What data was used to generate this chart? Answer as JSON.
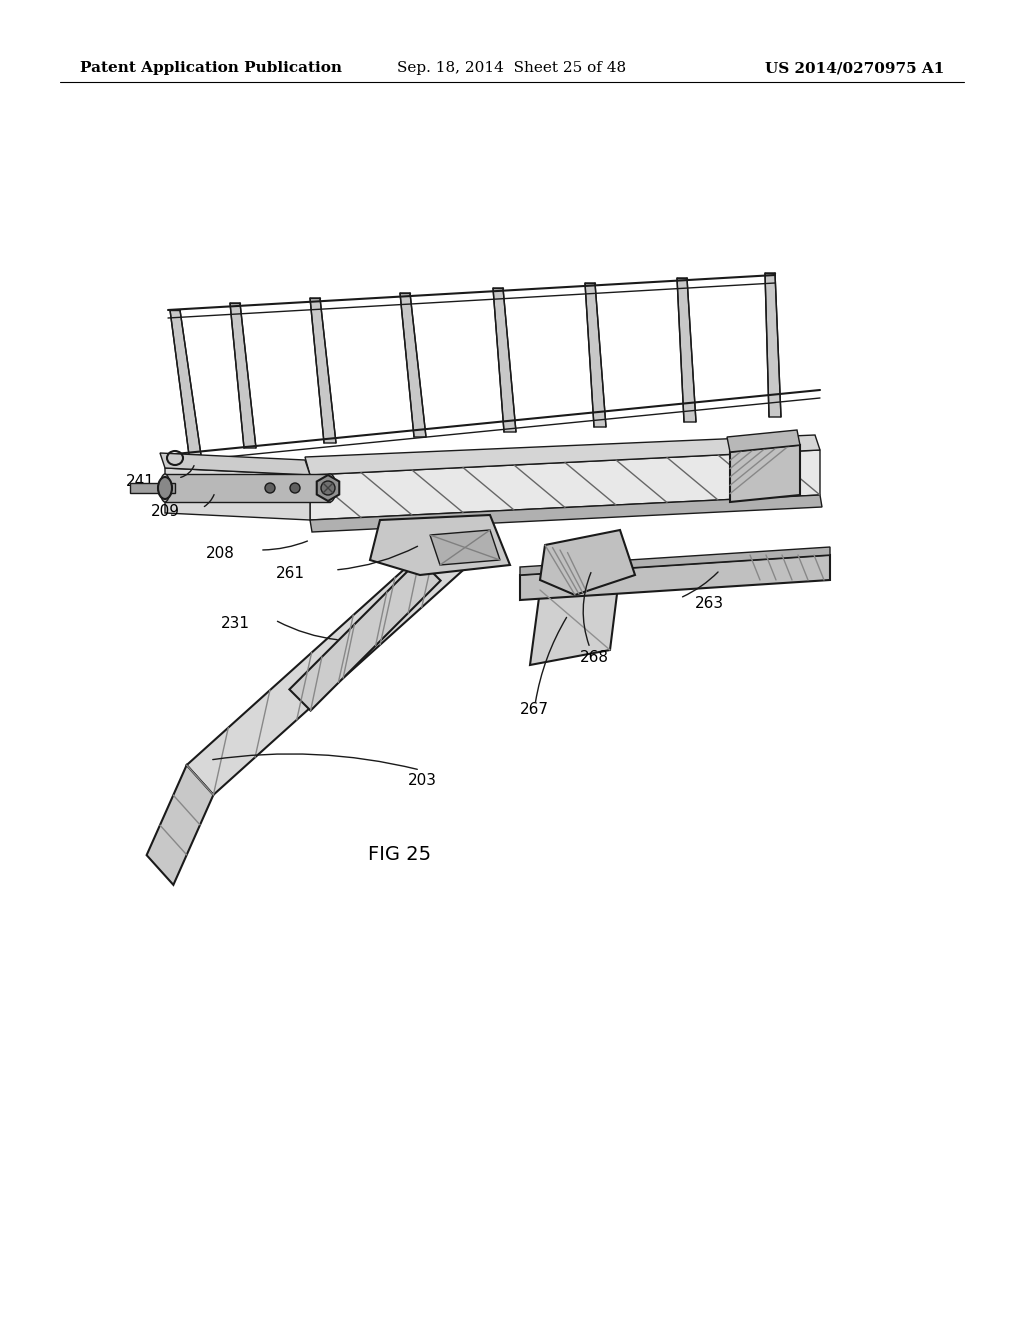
{
  "bg_color": "#ffffff",
  "header_left": "Patent Application Publication",
  "header_center": "Sep. 18, 2014  Sheet 25 of 48",
  "header_right": "US 2014/0270975 A1",
  "fig_label": "FIG 25",
  "title_fontsize": 11,
  "label_fontsize": 11,
  "fig_label_fontsize": 14
}
